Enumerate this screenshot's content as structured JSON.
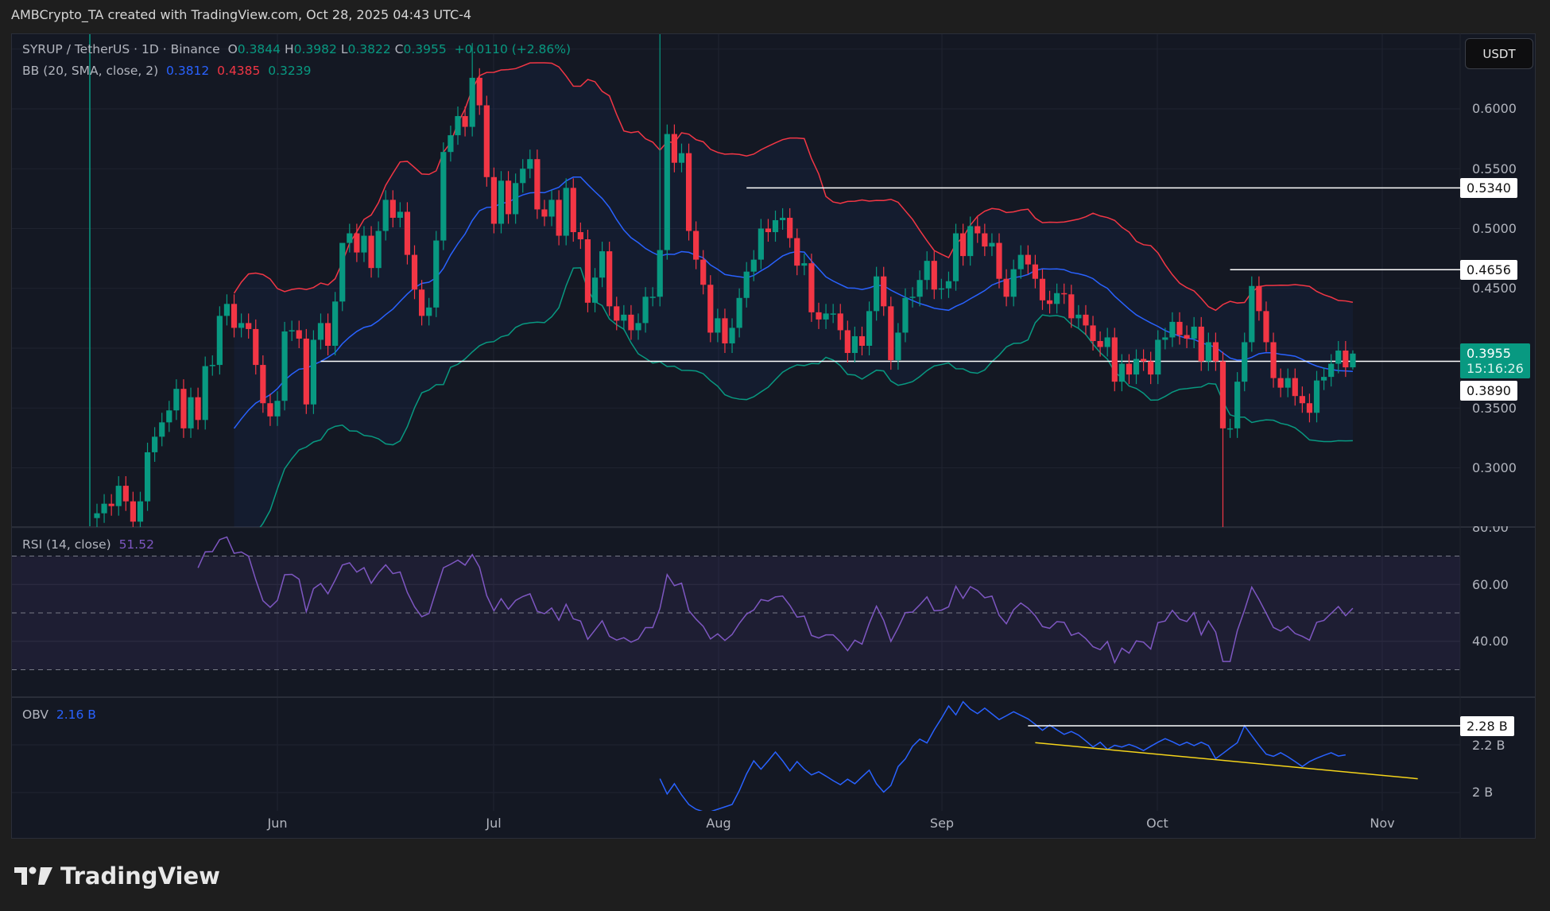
{
  "header": {
    "attribution": "AMBCrypto_TA created with TradingView.com, Oct 28, 2025 04:43 UTC-4"
  },
  "legend": {
    "symbol": "SYRUP / TetherUS · 1D · Binance",
    "o_label": "O",
    "o": "0.3844",
    "h_label": "H",
    "h": "0.3982",
    "l_label": "L",
    "l": "0.3822",
    "c_label": "C",
    "c": "0.3955",
    "change": "+0.0110 (+2.86%)",
    "bb_label": "BB (20, SMA, close, 2)",
    "bb_basis": "0.3812",
    "bb_upper": "0.4385",
    "bb_lower": "0.3239",
    "rsi_label": "RSI (14, close)",
    "rsi_value": "51.52",
    "obv_label": "OBV",
    "obv_value": "2.16 B"
  },
  "currency_button": "USDT",
  "price_axis": [
    "0.6000",
    "0.5500",
    "0.5000",
    "0.4500",
    "0.3500",
    "0.3000"
  ],
  "price_tags": {
    "level1": "0.5340",
    "level2": "0.4656",
    "level3": "0.3890",
    "current_price": "0.3955",
    "countdown": "15:16:26"
  },
  "rsi_axis": [
    "80.00",
    "60.00",
    "40.00"
  ],
  "obv_axis": {
    "tag": "2.28 B",
    "ticks": [
      "2.2 B",
      "2 B"
    ]
  },
  "time_axis": [
    "Jun",
    "Jul",
    "Aug",
    "Sep",
    "Oct",
    "Nov"
  ],
  "logo": "TradingView",
  "colors": {
    "up": "#089981",
    "down": "#f23645",
    "bb_basis": "#2962ff",
    "bb_upper": "#f23645",
    "bb_lower": "#089981",
    "rsi": "#7e57c2",
    "obv": "#2962ff",
    "trendline": "#f5d41a"
  },
  "chart_data": {
    "type": "candlestick",
    "title": "SYRUP / TetherUS · 1D · Binance",
    "first_date": "2025-05-07",
    "first_open": 0.258,
    "close": [
      0.262,
      0.27,
      0.268,
      0.285,
      0.272,
      0.255,
      0.272,
      0.313,
      0.326,
      0.338,
      0.348,
      0.366,
      0.333,
      0.359,
      0.34,
      0.385,
      0.386,
      0.427,
      0.437,
      0.417,
      0.421,
      0.416,
      0.386,
      0.354,
      0.343,
      0.356,
      0.414,
      0.415,
      0.408,
      0.353,
      0.407,
      0.421,
      0.402,
      0.439,
      0.488,
      0.496,
      0.48,
      0.494,
      0.467,
      0.498,
      0.524,
      0.509,
      0.514,
      0.478,
      0.449,
      0.427,
      0.434,
      0.49,
      0.564,
      0.578,
      0.594,
      0.585,
      0.626,
      0.603,
      0.543,
      0.504,
      0.54,
      0.512,
      0.538,
      0.55,
      0.558,
      0.516,
      0.51,
      0.524,
      0.494,
      0.534,
      0.497,
      0.491,
      0.438,
      0.459,
      0.481,
      0.435,
      0.423,
      0.428,
      0.415,
      0.421,
      0.443,
      0.443,
      0.482,
      0.579,
      0.555,
      0.563,
      0.498,
      0.474,
      0.453,
      0.413,
      0.425,
      0.404,
      0.417,
      0.442,
      0.464,
      0.474,
      0.5,
      0.497,
      0.507,
      0.509,
      0.492,
      0.469,
      0.471,
      0.43,
      0.424,
      0.429,
      0.429,
      0.415,
      0.396,
      0.41,
      0.402,
      0.431,
      0.46,
      0.435,
      0.39,
      0.413,
      0.442,
      0.443,
      0.457,
      0.473,
      0.449,
      0.45,
      0.456,
      0.496,
      0.477,
      0.502,
      0.496,
      0.485,
      0.488,
      0.458,
      0.443,
      0.466,
      0.478,
      0.47,
      0.458,
      0.44,
      0.437,
      0.446,
      0.445,
      0.425,
      0.428,
      0.419,
      0.406,
      0.401,
      0.409,
      0.372,
      0.387,
      0.378,
      0.391,
      0.389,
      0.378,
      0.407,
      0.409,
      0.422,
      0.411,
      0.408,
      0.418,
      0.389,
      0.405,
      0.389,
      0.333,
      0.333,
      0.372,
      0.405,
      0.452,
      0.431,
      0.405,
      0.375,
      0.367,
      0.375,
      0.36,
      0.354,
      0.346,
      0.373,
      0.376,
      0.387,
      0.398,
      0.384,
      0.3955
    ],
    "notable_wicks": [
      {
        "date": "2025-06-28",
        "high": 0.655
      },
      {
        "date": "2025-07-24",
        "high": 0.665
      },
      {
        "date": "2025-06-10",
        "high": 0.47
      },
      {
        "date": "2025-10-10",
        "low": 0.22
      },
      {
        "date": "2025-10-28",
        "high": 0.3982,
        "low": 0.3822
      }
    ],
    "horizontal_levels": [
      {
        "price": 0.534,
        "from": "2025-08-05"
      },
      {
        "price": 0.4656,
        "from": "2025-10-11"
      },
      {
        "price": 0.389,
        "from": "2025-06-07"
      }
    ],
    "bollinger": {
      "length": 20,
      "mult": 2,
      "basis": 0.3812,
      "upper": 0.4385,
      "lower": 0.3239
    },
    "rsi": {
      "length": 14,
      "value": 51.52,
      "bands": [
        70,
        50,
        30
      ],
      "ylim": [
        20,
        85
      ]
    },
    "obv": {
      "unit": "B",
      "first_date": "2025-07-24",
      "values": [
        2.058,
        1.994,
        2.037,
        1.99,
        1.95,
        1.93,
        1.92,
        1.92,
        1.93,
        1.94,
        1.95,
        2.008,
        2.078,
        2.133,
        2.098,
        2.133,
        2.17,
        2.133,
        2.091,
        2.13,
        2.098,
        2.074,
        2.087,
        2.069,
        2.05,
        2.033,
        2.056,
        2.037,
        2.066,
        2.094,
        2.037,
        2.002,
        2.03,
        2.109,
        2.141,
        2.194,
        2.224,
        2.208,
        2.263,
        2.311,
        2.363,
        2.326,
        2.381,
        2.35,
        2.331,
        2.354,
        2.33,
        2.306,
        2.322,
        2.339,
        2.324,
        2.309,
        2.286,
        2.261,
        2.283,
        2.263,
        2.244,
        2.256,
        2.241,
        2.217,
        2.191,
        2.211,
        2.181,
        2.198,
        2.191,
        2.202,
        2.191,
        2.176,
        2.194,
        2.211,
        2.226,
        2.213,
        2.198,
        2.211,
        2.197,
        2.211,
        2.197,
        2.142,
        2.164,
        2.187,
        2.209,
        2.28,
        2.239,
        2.198,
        2.161,
        2.152,
        2.167,
        2.15,
        2.13,
        2.109,
        2.13,
        2.144,
        2.156,
        2.167,
        2.153,
        2.158
      ],
      "resistance": 2.28,
      "resistance_from": "2025-09-13",
      "trendline": [
        {
          "date": "2025-09-14",
          "value": 2.209
        },
        {
          "date": "2025-11-06",
          "value": 2.058
        }
      ]
    },
    "ylim": [
      0.27,
      0.66
    ],
    "xlabel": "",
    "ylabel": "USDT"
  }
}
